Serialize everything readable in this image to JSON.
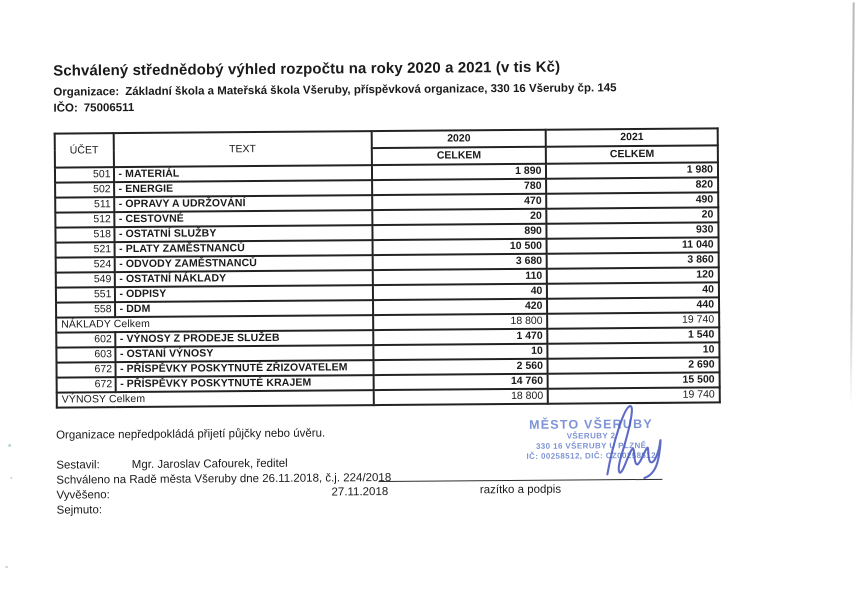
{
  "page": {
    "title": "Schválený střednědobý výhled rozpočtu na roky 2020 a 2021 (v tis Kč)",
    "organization_label": "Organizace:",
    "organization_value": "Základní škola a Mateřská škola Všeruby, příspěvková organizace,  330 16  Všeruby čp. 145",
    "ico_label": "IČO:",
    "ico_value": "75006511"
  },
  "table": {
    "headers": {
      "account": "ÚČET",
      "text": "TEXT",
      "year1": "2020",
      "year2": "2021",
      "celkem1": "CELKEM",
      "celkem2": "CELKEM"
    },
    "rows": [
      {
        "account": "501",
        "label": "- MATERIÁL",
        "y2020": "1 890",
        "y2021": "1 980",
        "total": false
      },
      {
        "account": "502",
        "label": "- ENERGIE",
        "y2020": "780",
        "y2021": "820",
        "total": false
      },
      {
        "account": "511",
        "label": "- OPRAVY A UDRŽOVÁNÍ",
        "y2020": "470",
        "y2021": "490",
        "total": false
      },
      {
        "account": "512",
        "label": "- CESTOVNÉ",
        "y2020": "20",
        "y2021": "20",
        "total": false
      },
      {
        "account": "518",
        "label": "- OSTATNÍ SLUŽBY",
        "y2020": "890",
        "y2021": "930",
        "total": false
      },
      {
        "account": "521",
        "label": "- PLATY ZAMĚSTNANCŮ",
        "y2020": "10 500",
        "y2021": "11 040",
        "total": false
      },
      {
        "account": "524",
        "label": "- ODVODY ZAMĚSTNANCŮ",
        "y2020": "3 680",
        "y2021": "3 860",
        "total": false
      },
      {
        "account": "549",
        "label": "- OSTATNÍ NÁKLADY",
        "y2020": "110",
        "y2021": "120",
        "total": false
      },
      {
        "account": "551",
        "label": "- ODPISY",
        "y2020": "40",
        "y2021": "40",
        "total": false
      },
      {
        "account": "558",
        "label": "- DDM",
        "y2020": "420",
        "y2021": "440",
        "total": false
      },
      {
        "account": "",
        "label": "NÁKLADY Celkem",
        "y2020": "18 800",
        "y2021": "19 740",
        "total": true
      },
      {
        "account": "602",
        "label": "- VÝNOSY Z PRODEJE SLUŽEB",
        "y2020": "1 470",
        "y2021": "1 540",
        "total": false
      },
      {
        "account": "603",
        "label": "- OSTANÍ VÝNOSY",
        "y2020": "10",
        "y2021": "10",
        "total": false
      },
      {
        "account": "672",
        "label": "- PŘÍSPĚVKY POSKYTNUTÉ ZŘIZOVATELEM",
        "y2020": "2 560",
        "y2021": "2 690",
        "total": false
      },
      {
        "account": "672",
        "label": "- PŘÍSPĚVKY POSKYTNUTÉ KRAJEM",
        "y2020": "14 760",
        "y2021": "15 500",
        "total": false
      },
      {
        "account": "",
        "label": "VÝNOSY Celkem",
        "y2020": "18 800",
        "y2021": "19 740",
        "total": true
      }
    ]
  },
  "footer": {
    "note": "Organizace nepředpokládá přijetí půjčky nebo úvěru.",
    "sestavil_label": "Sestavil:",
    "sestavil_value": "Mgr.  Jaroslav Cafourek, ředitel",
    "approved_line": "Schváleno na Radě města Všeruby dne 26.11.2018, č.j. 224/2018",
    "vyveseno_label": "Vyvěšeno:",
    "vyveseno_date": "27.11.2018",
    "sejmuto_label": "Sejmuto:",
    "signature_caption": "razítko a podpis"
  },
  "stamp": {
    "line1": "MĚSTO VŠERUBY",
    "line2": "VŠERUBY 2",
    "line3": "330 16 VŠERUBY U PLZNĚ",
    "line4": "IČ: 00258512, DIČ: CZ00258512",
    "stamp_color": "#7d93d4",
    "signature_color": "#4c5cc0"
  }
}
